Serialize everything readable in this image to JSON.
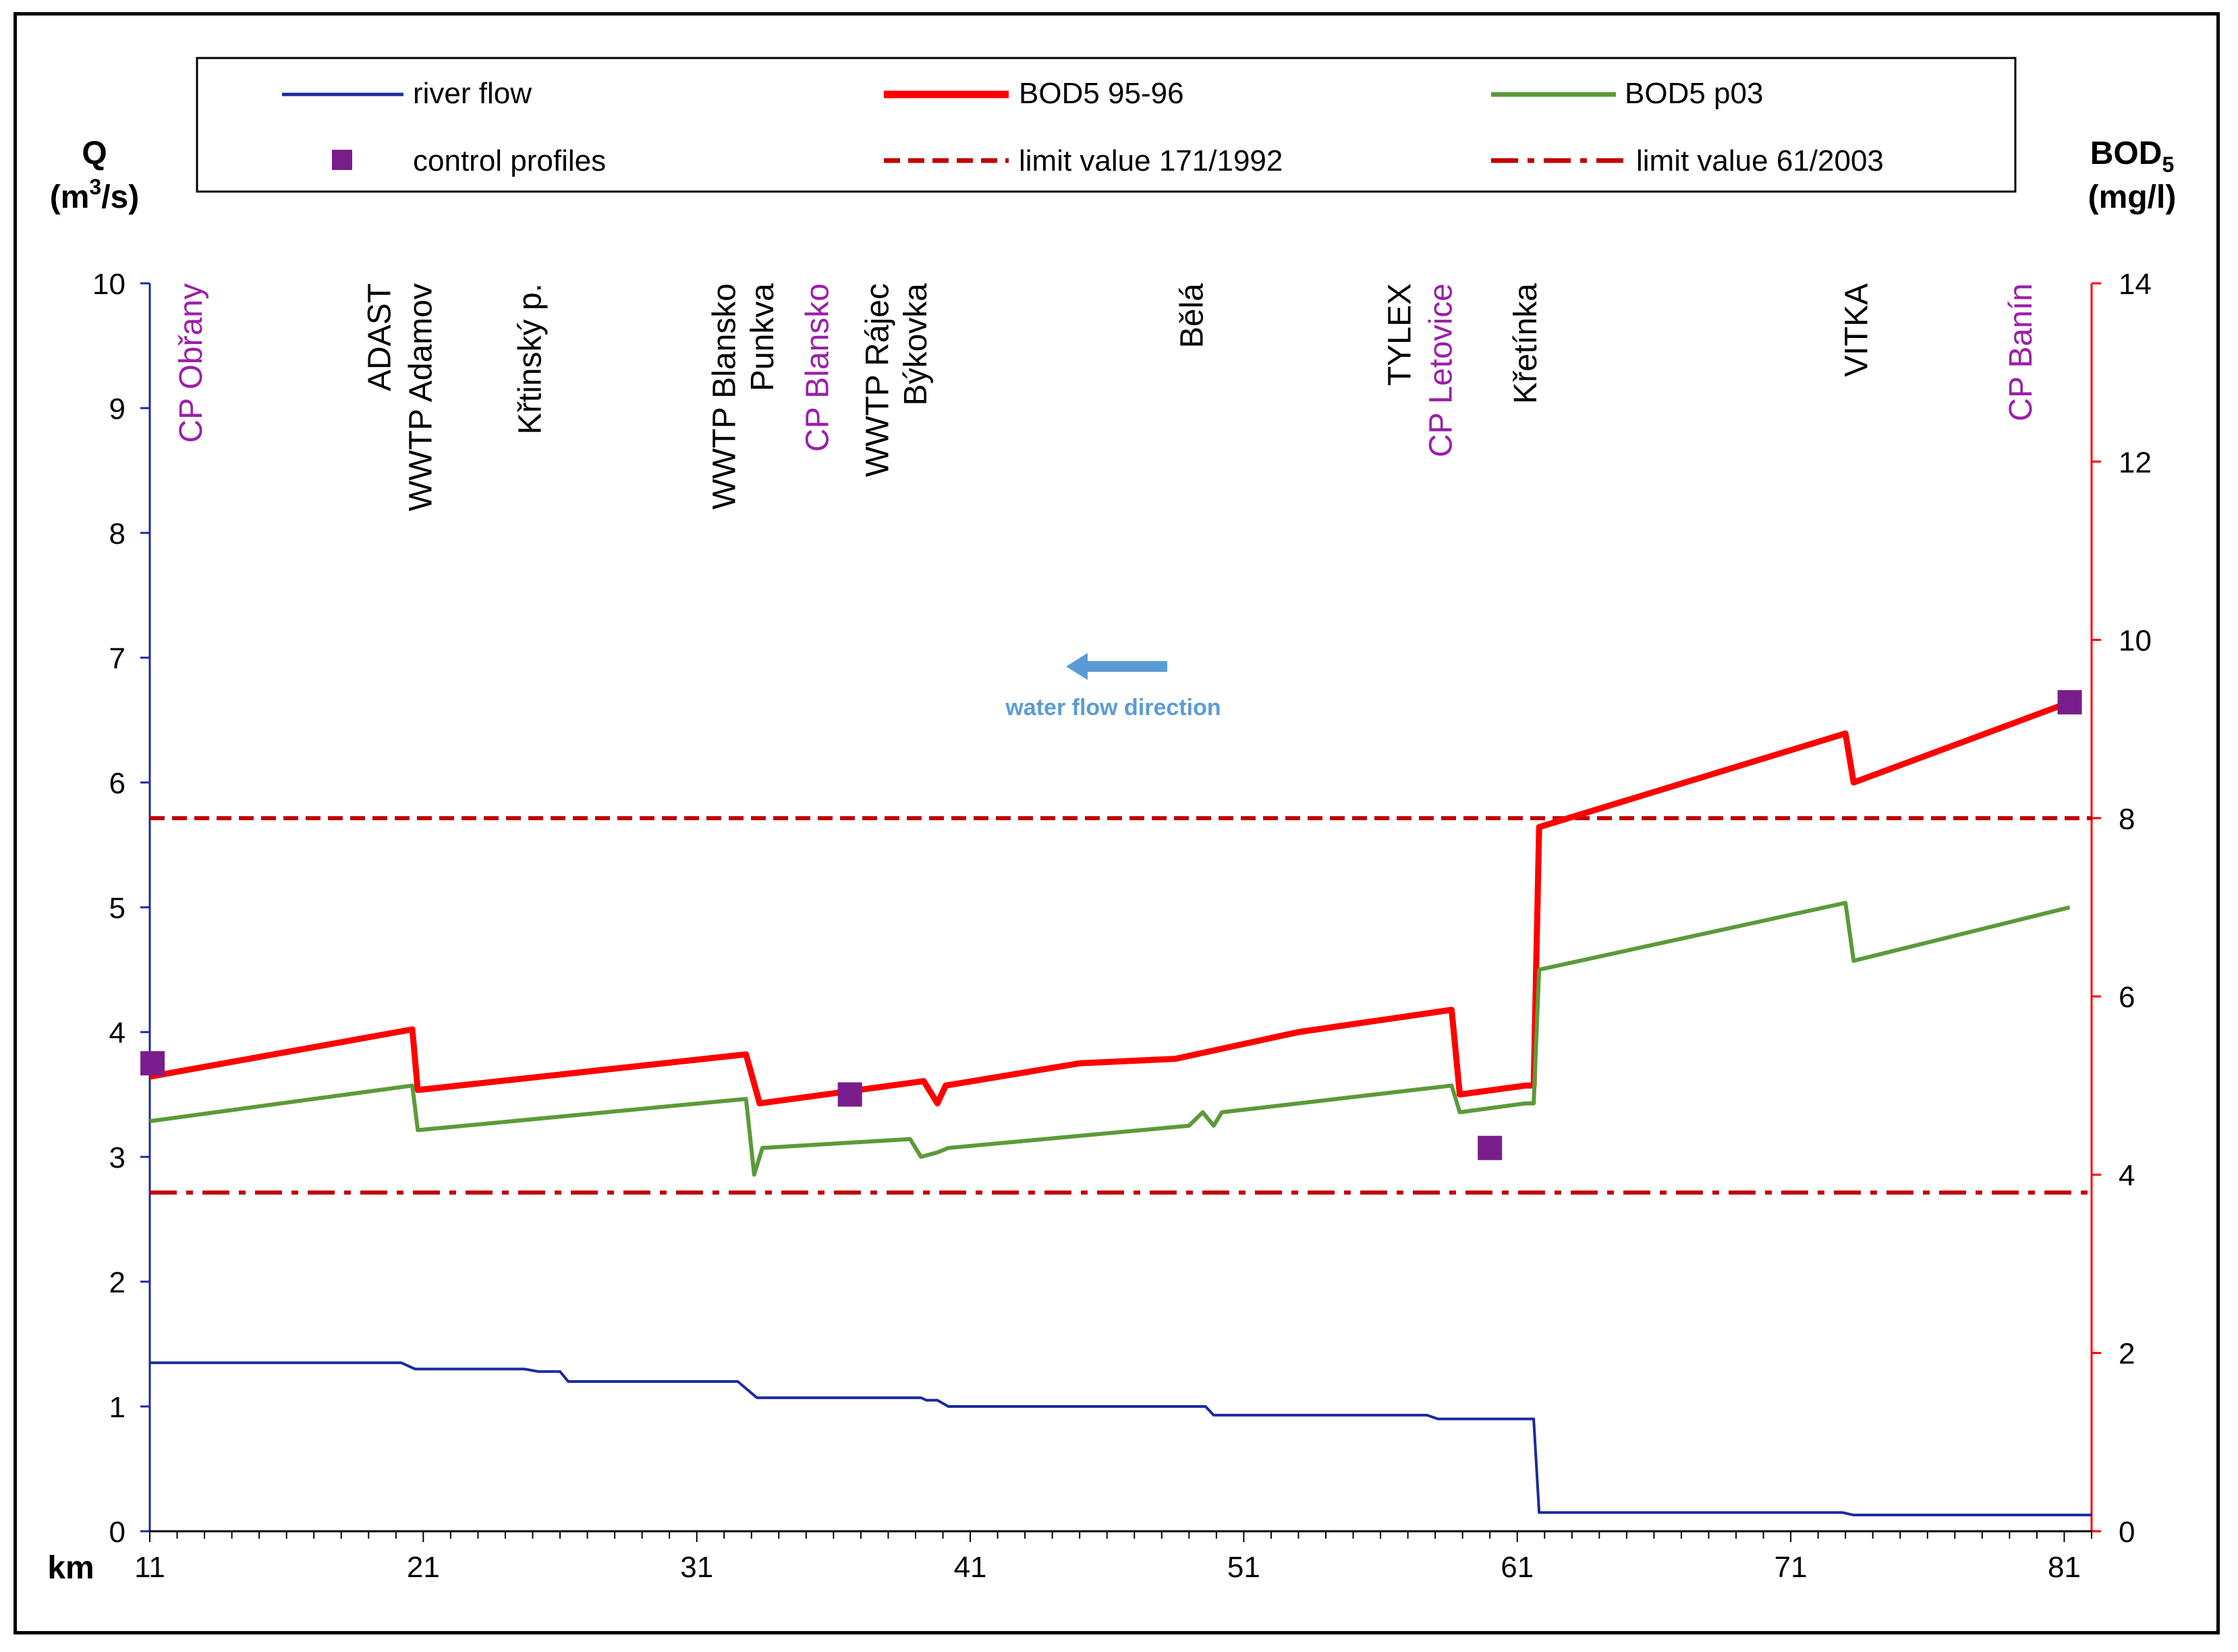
{
  "chart_data": {
    "type": "line",
    "x_axis": {
      "label": "km",
      "range": [
        11,
        82
      ],
      "ticks": [
        11,
        21,
        31,
        41,
        51,
        61,
        71,
        81
      ]
    },
    "y_left": {
      "label_top": "Q",
      "label_unit": "(m3/s)",
      "label_unit_parts": [
        "(m",
        "3",
        "/s)"
      ],
      "range": [
        0,
        10
      ],
      "ticks": [
        0,
        1,
        2,
        3,
        4,
        5,
        6,
        7,
        8,
        9,
        10
      ],
      "color": "#1b2a9e"
    },
    "y_right": {
      "label_top": "BOD5",
      "label_top_parts": [
        "BOD",
        "5"
      ],
      "label_unit": "(mg/l)",
      "range": [
        0,
        14
      ],
      "ticks": [
        0,
        2,
        4,
        6,
        8,
        10,
        12,
        14
      ],
      "color": "#ff0000"
    },
    "legend": {
      "placement": "top",
      "entries": [
        {
          "label": "river flow",
          "style": "line",
          "color": "#1b2a9e"
        },
        {
          "label": "BOD5 95-96",
          "style": "thick-line",
          "color": "#ff0000"
        },
        {
          "label": "BOD5 p03",
          "style": "line",
          "color": "#5b9a3a"
        },
        {
          "label": "control profiles",
          "style": "marker",
          "color": "#7a1d8c"
        },
        {
          "label": "limit value 171/1992",
          "style": "dashed",
          "color": "#c00000"
        },
        {
          "label": "limit value 61/2003",
          "style": "dash-dot",
          "color": "#c00000"
        }
      ]
    },
    "annotation": {
      "label": "water flow direction",
      "color": "#5b9bd5"
    },
    "site_labels": [
      {
        "text": "CP Obřany",
        "km": 12.9,
        "purple": true
      },
      {
        "text": "ADAST",
        "km": 19.8,
        "purple": false
      },
      {
        "text": "WWTP Adamov",
        "km": 21.3,
        "purple": false
      },
      {
        "text": "Křtinský p.",
        "km": 25.3,
        "purple": false
      },
      {
        "text": "WWTP Blansko",
        "km": 32.4,
        "purple": false
      },
      {
        "text": "Punkva",
        "km": 33.8,
        "purple": false
      },
      {
        "text": "CP Blansko",
        "km": 35.8,
        "purple": true
      },
      {
        "text": "WWTP Rájec",
        "km": 38.0,
        "purple": false
      },
      {
        "text": "Býkovka",
        "km": 39.4,
        "purple": false
      },
      {
        "text": "Bělá",
        "km": 49.5,
        "purple": false
      },
      {
        "text": "TYLEX",
        "km": 57.1,
        "purple": false
      },
      {
        "text": "CP Letovice",
        "km": 58.6,
        "purple": true
      },
      {
        "text": "Křetínka",
        "km": 61.7,
        "purple": false
      },
      {
        "text": "VITKA",
        "km": 73.8,
        "purple": false
      },
      {
        "text": "CP Banín",
        "km": 79.8,
        "purple": true
      }
    ],
    "limits": [
      {
        "name": "limit value 171/1992",
        "bod5": 8.0,
        "style": "dashed"
      },
      {
        "name": "limit value 61/2003",
        "bod5": 3.8,
        "style": "dash-dot"
      }
    ],
    "control_profiles_bod5": [
      {
        "km": 11.1,
        "bod5": 5.25
      },
      {
        "km": 36.6,
        "bod5": 4.9
      },
      {
        "km": 60.0,
        "bod5": 4.3
      },
      {
        "km": 81.2,
        "bod5": 9.3
      }
    ],
    "series": [
      {
        "name": "river flow",
        "axis": "left",
        "points": [
          [
            11,
            1.35
          ],
          [
            20.2,
            1.35
          ],
          [
            20.7,
            1.3
          ],
          [
            24.7,
            1.3
          ],
          [
            25.2,
            1.28
          ],
          [
            26.0,
            1.28
          ],
          [
            26.3,
            1.2
          ],
          [
            32.5,
            1.2
          ],
          [
            33.2,
            1.07
          ],
          [
            39.2,
            1.07
          ],
          [
            39.4,
            1.05
          ],
          [
            39.8,
            1.05
          ],
          [
            40.2,
            1.0
          ],
          [
            49.6,
            1.0
          ],
          [
            49.9,
            0.93
          ],
          [
            57.7,
            0.93
          ],
          [
            58.1,
            0.9
          ],
          [
            61.6,
            0.9
          ],
          [
            61.8,
            0.15
          ],
          [
            72.9,
            0.15
          ],
          [
            73.3,
            0.13
          ],
          [
            82,
            0.13
          ]
        ]
      },
      {
        "name": "BOD5 95-96",
        "axis": "right",
        "points": [
          [
            11,
            5.1
          ],
          [
            20.6,
            5.63
          ],
          [
            20.8,
            4.95
          ],
          [
            32.8,
            5.35
          ],
          [
            33.3,
            4.8
          ],
          [
            39.3,
            5.05
          ],
          [
            39.8,
            4.8
          ],
          [
            40.1,
            5.0
          ],
          [
            45,
            5.25
          ],
          [
            48.5,
            5.3
          ],
          [
            53,
            5.6
          ],
          [
            58.6,
            5.85
          ],
          [
            58.9,
            4.9
          ],
          [
            61.3,
            5.0
          ],
          [
            61.6,
            5.0
          ],
          [
            61.8,
            7.9
          ],
          [
            73.0,
            8.95
          ],
          [
            73.3,
            8.4
          ],
          [
            81.2,
            9.3
          ]
        ]
      },
      {
        "name": "BOD5 p03",
        "axis": "right",
        "points": [
          [
            11,
            4.6
          ],
          [
            20.6,
            5.0
          ],
          [
            20.8,
            4.5
          ],
          [
            32.8,
            4.85
          ],
          [
            33.1,
            4.0
          ],
          [
            33.4,
            4.3
          ],
          [
            38.8,
            4.4
          ],
          [
            39.2,
            4.2
          ],
          [
            39.8,
            4.25
          ],
          [
            40.2,
            4.3
          ],
          [
            49,
            4.55
          ],
          [
            49.5,
            4.7
          ],
          [
            49.9,
            4.55
          ],
          [
            50.2,
            4.7
          ],
          [
            58.6,
            5.0
          ],
          [
            58.9,
            4.7
          ],
          [
            61.3,
            4.8
          ],
          [
            61.6,
            4.8
          ],
          [
            61.8,
            6.3
          ],
          [
            73.0,
            7.05
          ],
          [
            73.3,
            6.4
          ],
          [
            81.2,
            7.0
          ]
        ]
      }
    ]
  }
}
